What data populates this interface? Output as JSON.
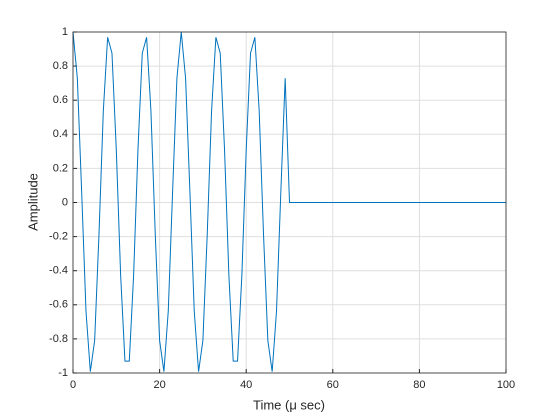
{
  "chart_data": {
    "type": "line",
    "xlabel": "Time  (μ  sec)",
    "ylabel": "Amplitude",
    "x": [
      0,
      1,
      2,
      3,
      4,
      5,
      6,
      7,
      8,
      9,
      10,
      11,
      12,
      13,
      14,
      15,
      16,
      17,
      18,
      19,
      20,
      21,
      22,
      23,
      24,
      25,
      26,
      27,
      28,
      29,
      30,
      31,
      32,
      33,
      34,
      35,
      36,
      37,
      38,
      39,
      40,
      41,
      42,
      43,
      44,
      45,
      46,
      47,
      48,
      49,
      50,
      51,
      52,
      53,
      54,
      55,
      56,
      57,
      58,
      59,
      60,
      61,
      62,
      63,
      64,
      65,
      66,
      67,
      68,
      69,
      70,
      71,
      72,
      73,
      74,
      75,
      76,
      77,
      78,
      79,
      80,
      81,
      82,
      83,
      84,
      85,
      86,
      87,
      88,
      89,
      90,
      91,
      92,
      93,
      94,
      95,
      96,
      97,
      98,
      99,
      100
    ],
    "series": [
      {
        "color": "#0072bd",
        "values": [
          1,
          0.729,
          0.063,
          -0.637,
          -0.992,
          -0.809,
          -0.187,
          0.536,
          0.969,
          0.876,
          0.309,
          -0.426,
          -0.93,
          -0.93,
          -0.426,
          0.309,
          0.876,
          0.969,
          0.536,
          -0.187,
          -0.809,
          -0.992,
          -0.637,
          0.063,
          0.729,
          1,
          0.729,
          0.063,
          -0.637,
          -0.992,
          -0.809,
          -0.187,
          0.536,
          0.969,
          0.876,
          0.309,
          -0.426,
          -0.93,
          -0.93,
          -0.426,
          0.309,
          0.876,
          0.969,
          0.536,
          -0.187,
          -0.809,
          -0.992,
          -0.637,
          0.063,
          0.729,
          0,
          0,
          0,
          0,
          0,
          0,
          0,
          0,
          0,
          0,
          0,
          0,
          0,
          0,
          0,
          0,
          0,
          0,
          0,
          0,
          0,
          0,
          0,
          0,
          0,
          0,
          0,
          0,
          0,
          0,
          0,
          0,
          0,
          0,
          0,
          0,
          0,
          0,
          0,
          0,
          0,
          0,
          0,
          0,
          0,
          0,
          0,
          0,
          0,
          0,
          0
        ]
      }
    ],
    "xlim": [
      0,
      100
    ],
    "xticks": [
      0,
      20,
      40,
      60,
      80,
      100
    ],
    "ylim": [
      -1,
      1
    ],
    "yticks": [
      -1,
      -0.8,
      -0.6,
      -0.4,
      -0.2,
      0,
      0.2,
      0.4,
      0.6,
      0.8,
      1
    ],
    "grid": true
  }
}
